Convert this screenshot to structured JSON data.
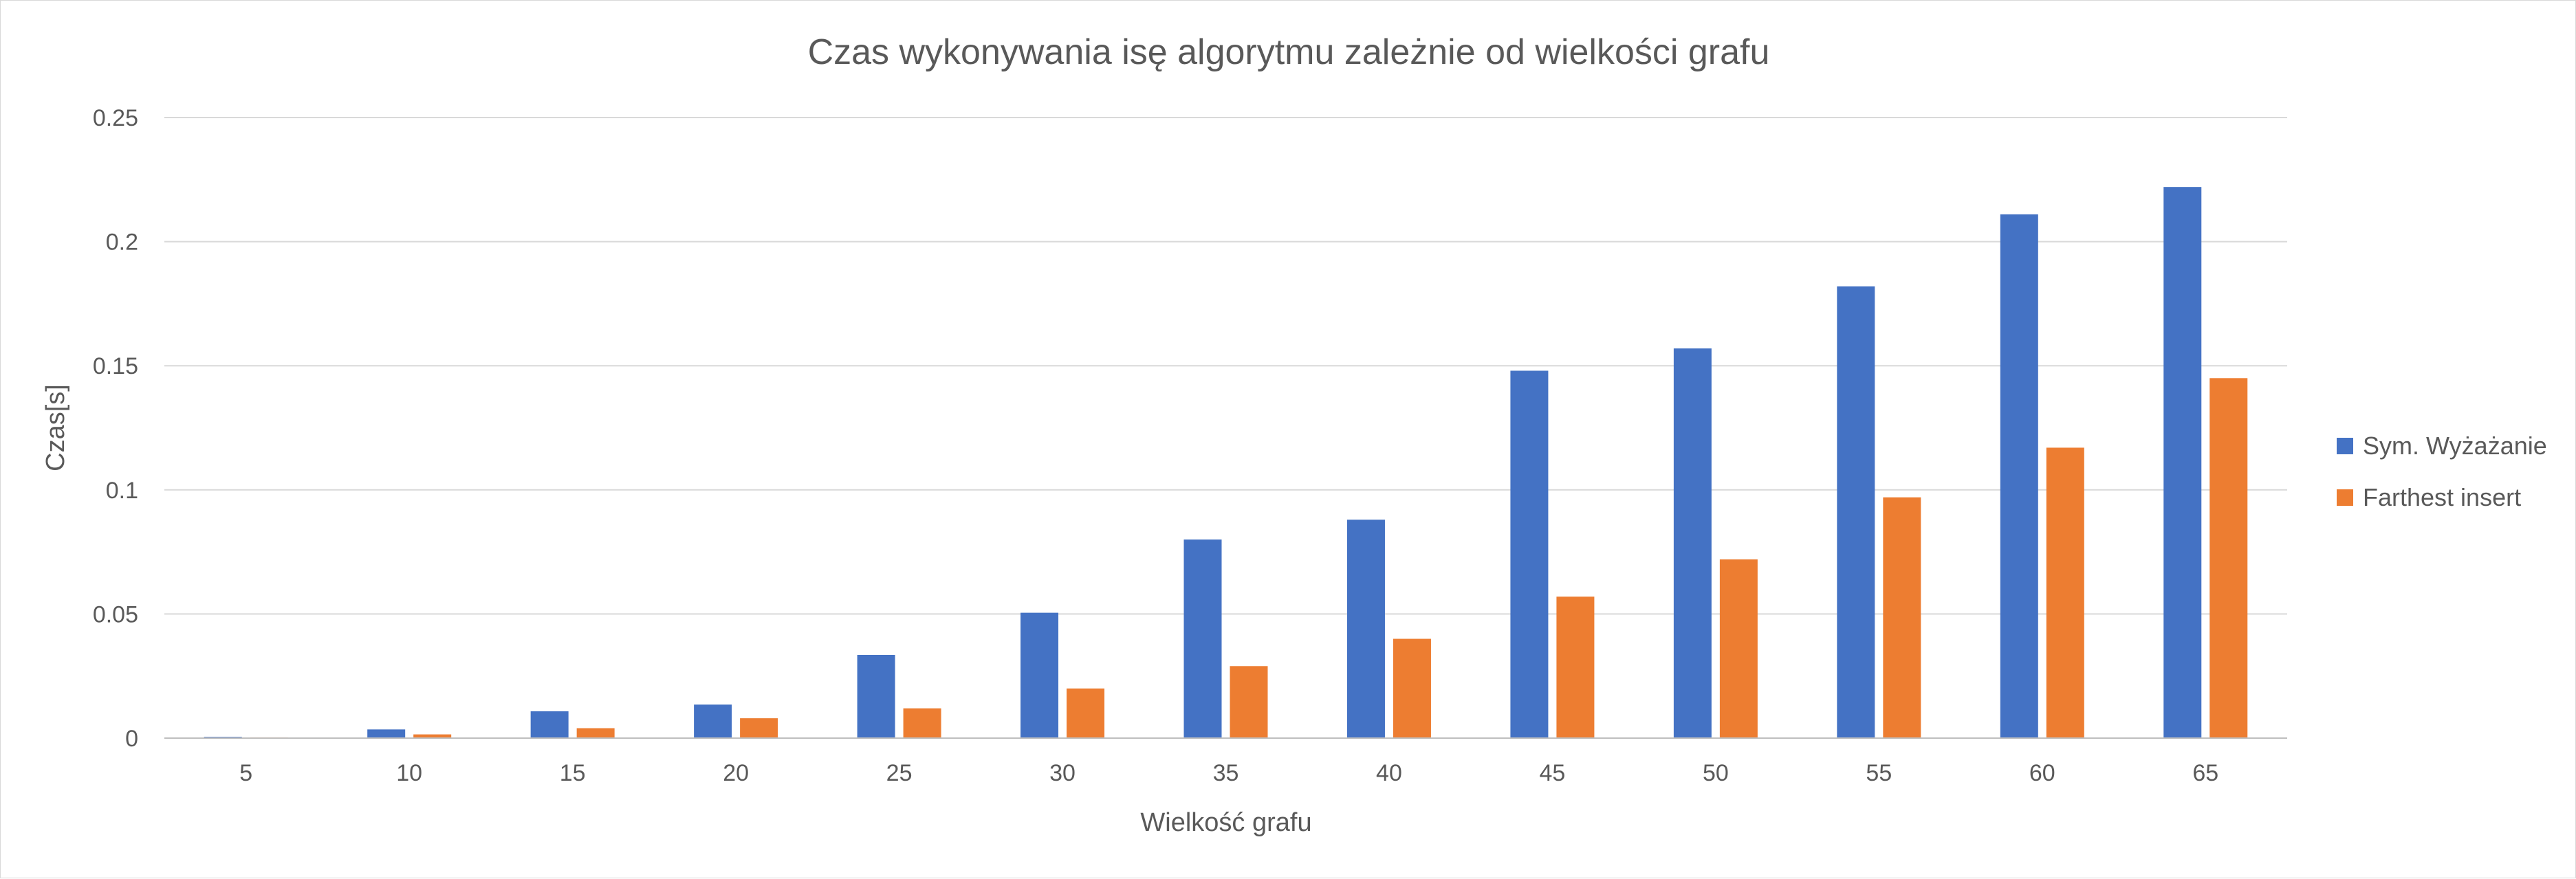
{
  "chart_data": {
    "type": "bar",
    "title": "Czas wykonywania isę algorytmu zależnie od wielkości grafu",
    "xlabel": "Wielkość grafu",
    "ylabel": "Czas[s]",
    "categories": [
      "5",
      "10",
      "15",
      "20",
      "25",
      "30",
      "35",
      "40",
      "45",
      "50",
      "55",
      "60",
      "65"
    ],
    "series": [
      {
        "name": "Sym. Wyżażanie",
        "color": "#4472c4",
        "values": [
          0.0005,
          0.0035,
          0.0108,
          0.0135,
          0.0335,
          0.0505,
          0.08,
          0.088,
          0.148,
          0.157,
          0.182,
          0.211,
          0.222
        ]
      },
      {
        "name": "Farthest insert",
        "color": "#ed7d31",
        "values": [
          0.0003,
          0.0015,
          0.004,
          0.008,
          0.012,
          0.02,
          0.029,
          0.04,
          0.057,
          0.072,
          0.097,
          0.117,
          0.145
        ]
      }
    ],
    "ylim": [
      0,
      0.25
    ],
    "yticks": [
      "0",
      "0.05",
      "0.1",
      "0.15",
      "0.2",
      "0.25"
    ],
    "ytick_values": [
      0,
      0.05,
      0.1,
      0.15,
      0.2,
      0.25
    ],
    "grid": true,
    "legend_position": "right"
  }
}
